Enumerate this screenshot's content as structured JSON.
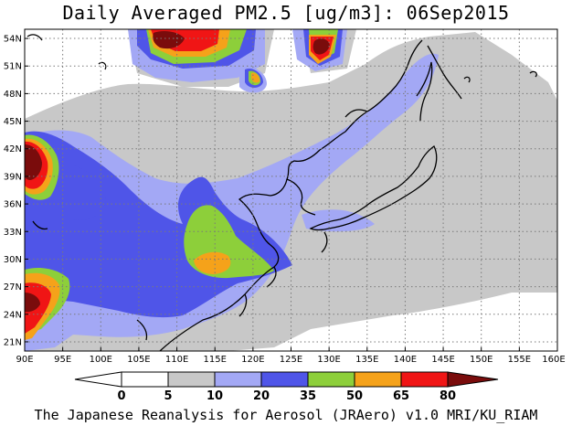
{
  "title": "Daily Averaged PM2.5 [ug/m3]: 06Sep2015",
  "footer": "The Japanese Reanalysis for Aerosol (JRAero) v1.0 MRI/KU_RIAM",
  "map": {
    "lon_range": [
      90,
      160
    ],
    "lat_range": [
      20,
      55
    ],
    "lon_ticks": [
      "90E",
      "95E",
      "100E",
      "105E",
      "110E",
      "115E",
      "120E",
      "125E",
      "130E",
      "135E",
      "140E",
      "145E",
      "150E",
      "155E",
      "160E"
    ],
    "lat_ticks": [
      "21N",
      "24N",
      "27N",
      "30N",
      "33N",
      "36N",
      "39N",
      "42N",
      "45N",
      "48N",
      "51N",
      "54N"
    ],
    "gridlines": true,
    "colorbar": {
      "labels": [
        "0",
        "5",
        "10",
        "20",
        "35",
        "50",
        "65",
        "80"
      ],
      "colors": [
        "#ffffff",
        "#ffffff",
        "#c8c8c8",
        "#a3a8f5",
        "#4f55e8",
        "#8dcf3a",
        "#f5a21a",
        "#f01515",
        "#7a0c0c"
      ]
    }
  }
}
